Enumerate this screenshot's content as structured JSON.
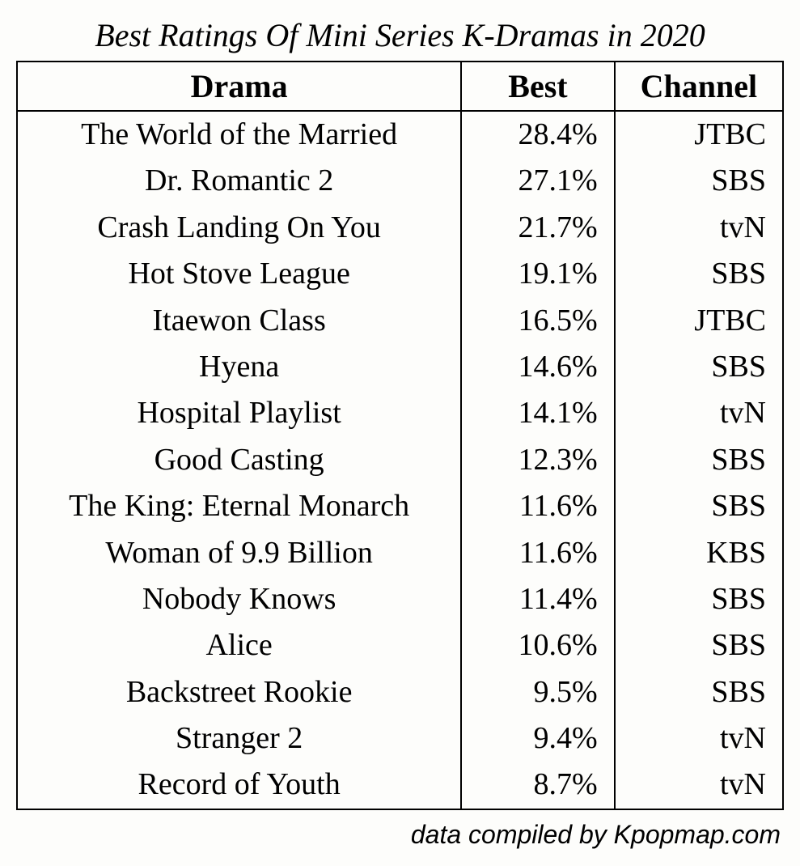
{
  "title": "Best Ratings Of Mini Series K-Dramas in 2020",
  "footer": "data compiled by Kpopmap.com",
  "table": {
    "type": "table",
    "background_color": "#fdfdfb",
    "border_color": "#000000",
    "title_fontsize": 40,
    "header_fontsize": 40,
    "cell_fontsize": 38,
    "footer_fontsize": 32,
    "columns": [
      {
        "key": "drama",
        "label": "Drama",
        "align": "center",
        "width_pct": 58
      },
      {
        "key": "best",
        "label": "Best",
        "align": "right",
        "width_pct": 20
      },
      {
        "key": "channel",
        "label": "Channel",
        "align": "right",
        "width_pct": 22
      }
    ],
    "rows": [
      {
        "drama": "The World of the Married",
        "best": "28.4%",
        "channel": "JTBC"
      },
      {
        "drama": "Dr. Romantic 2",
        "best": "27.1%",
        "channel": "SBS"
      },
      {
        "drama": "Crash Landing On You",
        "best": "21.7%",
        "channel": "tvN"
      },
      {
        "drama": "Hot Stove League",
        "best": "19.1%",
        "channel": "SBS"
      },
      {
        "drama": "Itaewon Class",
        "best": "16.5%",
        "channel": "JTBC"
      },
      {
        "drama": "Hyena",
        "best": "14.6%",
        "channel": "SBS"
      },
      {
        "drama": "Hospital Playlist",
        "best": "14.1%",
        "channel": "tvN"
      },
      {
        "drama": "Good Casting",
        "best": "12.3%",
        "channel": "SBS"
      },
      {
        "drama": "The King: Eternal Monarch",
        "best": "11.6%",
        "channel": "SBS"
      },
      {
        "drama": "Woman of 9.9 Billion",
        "best": "11.6%",
        "channel": "KBS"
      },
      {
        "drama": "Nobody Knows",
        "best": "11.4%",
        "channel": "SBS"
      },
      {
        "drama": "Alice",
        "best": "10.6%",
        "channel": "SBS"
      },
      {
        "drama": "Backstreet Rookie",
        "best": "9.5%",
        "channel": "SBS"
      },
      {
        "drama": "Stranger 2",
        "best": "9.4%",
        "channel": "tvN"
      },
      {
        "drama": "Record of Youth",
        "best": "8.7%",
        "channel": "tvN"
      }
    ]
  }
}
